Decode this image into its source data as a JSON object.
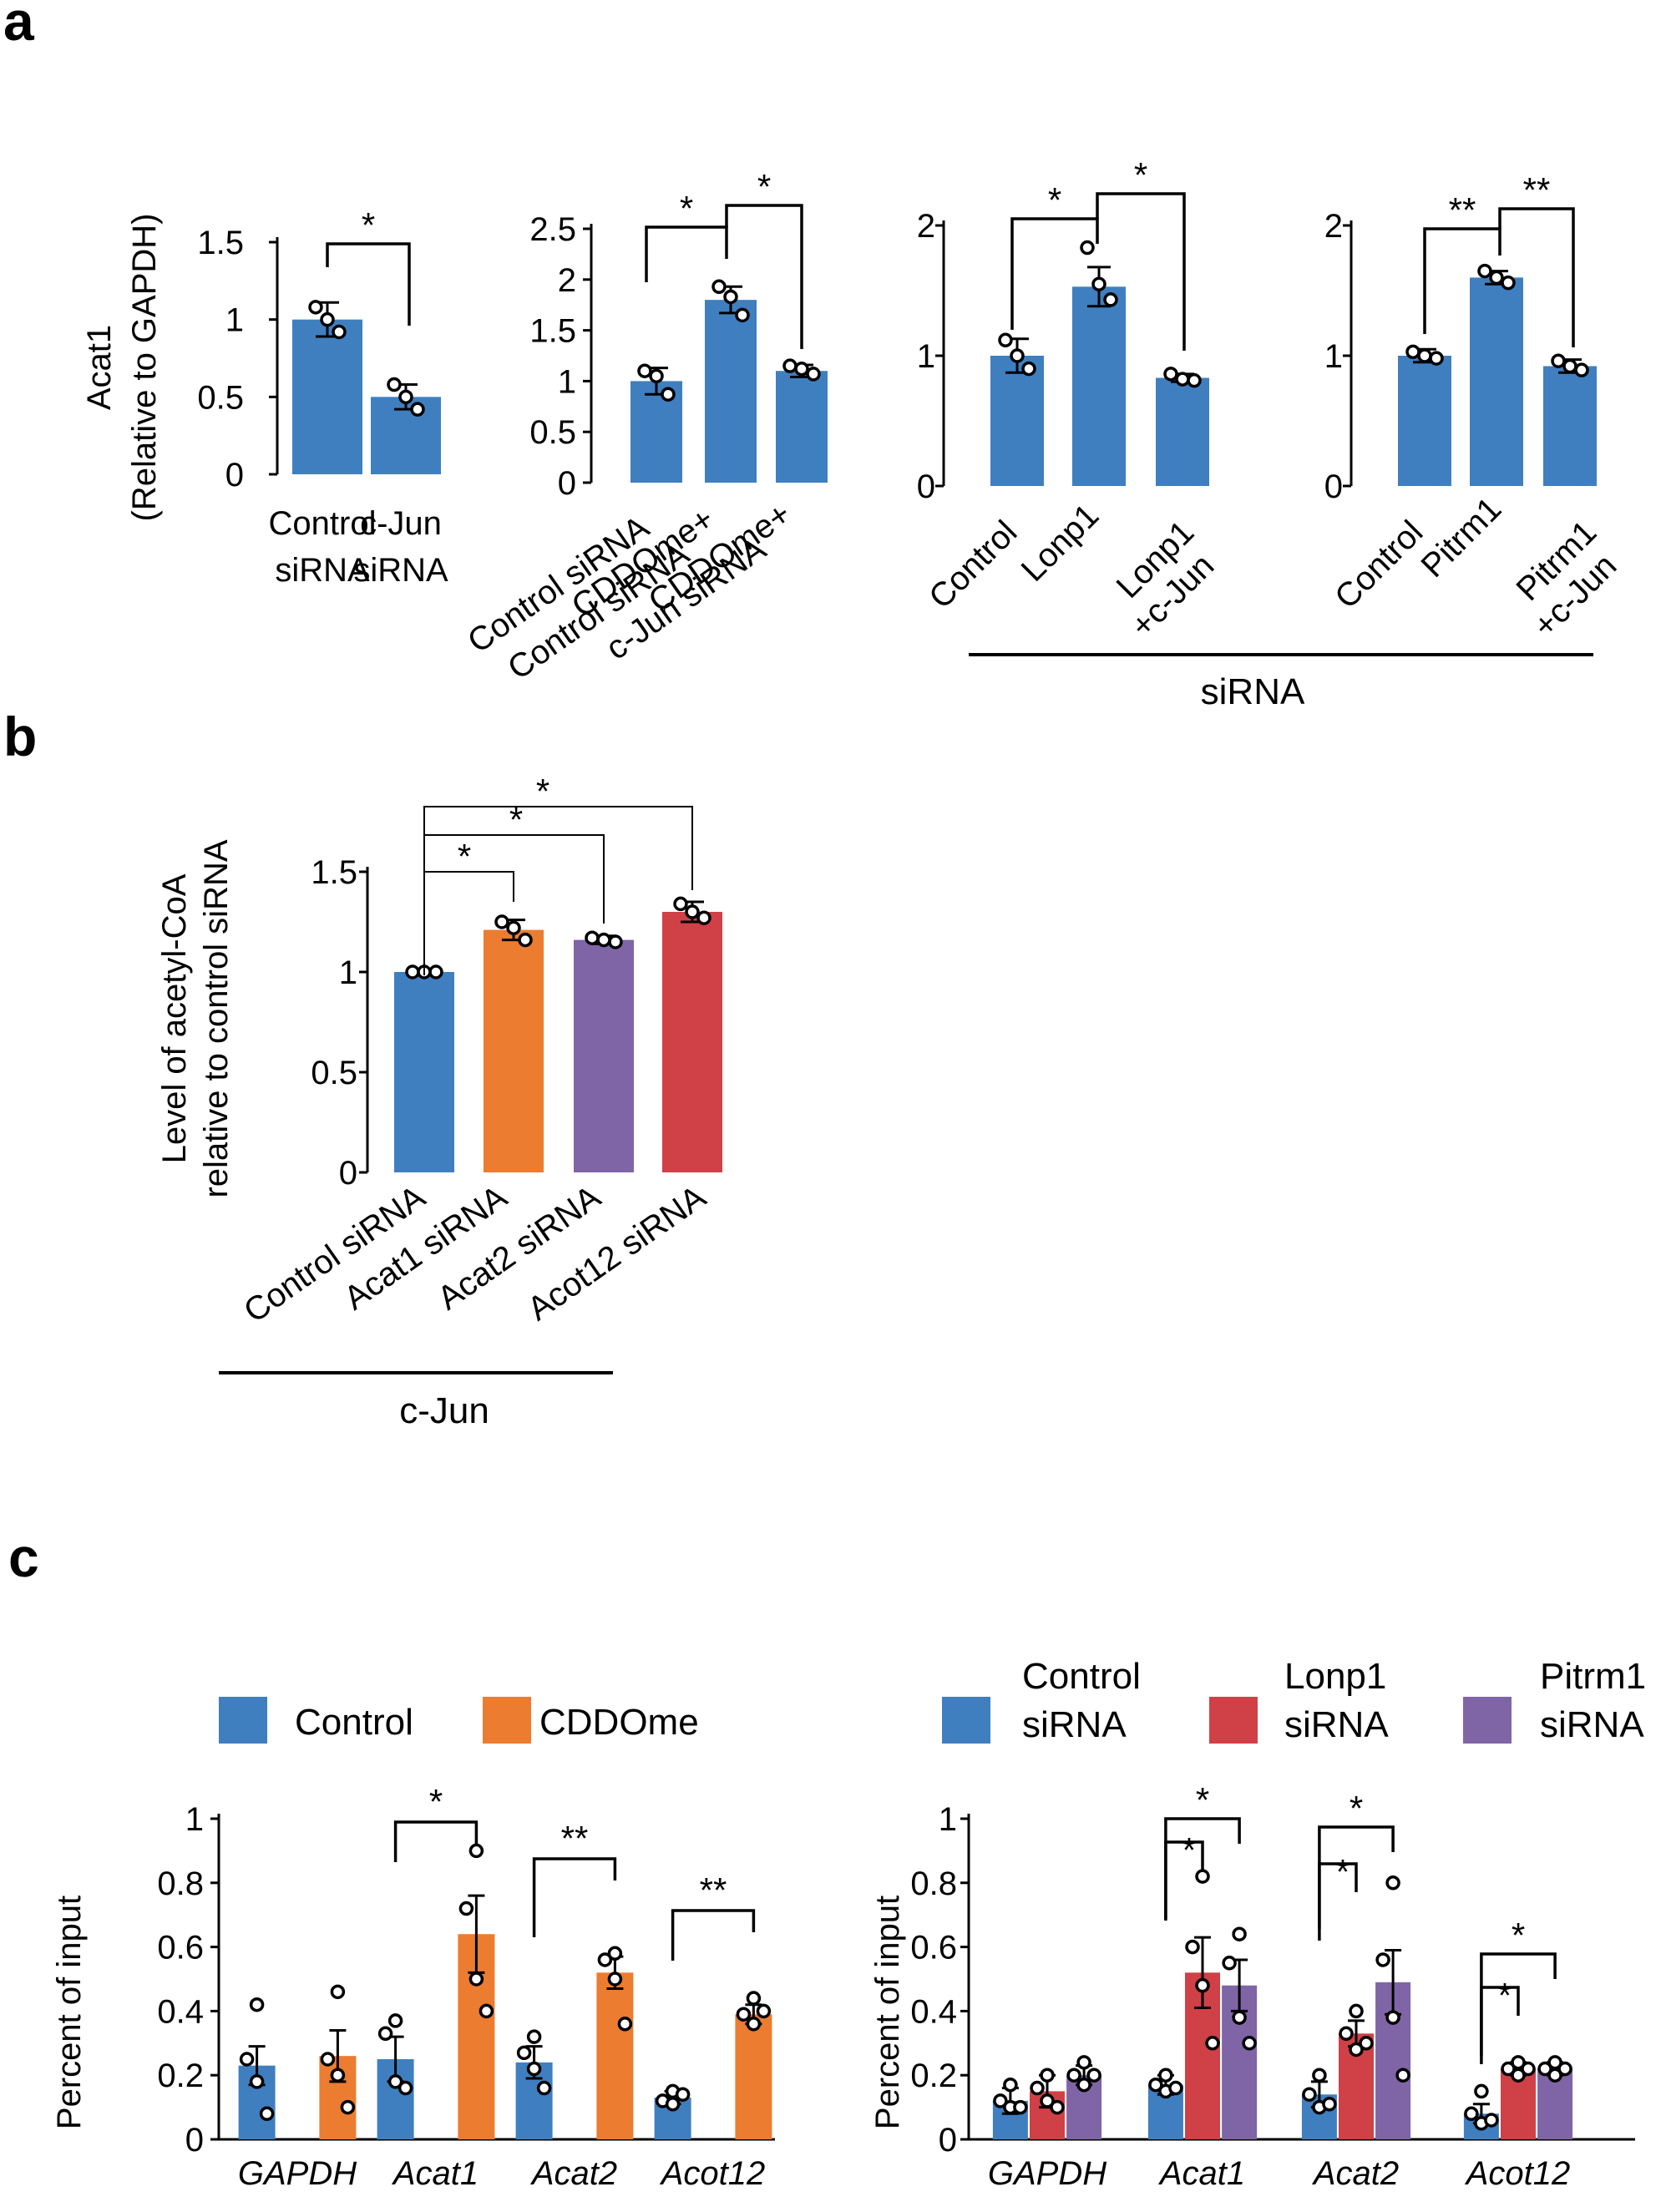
{
  "panel_labels": {
    "a": "a",
    "b": "b",
    "c": "c"
  },
  "colors": {
    "blue": "#3f7fc0",
    "orange": "#ec7c30",
    "purple": "#7f65a6",
    "red": "#cf4146"
  },
  "panel_a": {
    "ylabel_line1": "Acat1",
    "ylabel_line2": "(Relative to GAPDH)",
    "group_label_c": "siRNA",
    "group_label_d": "siRNA"
  },
  "panel_b": {
    "ylabel_line1": "Level of acetyl-CoA",
    "ylabel_line2": "relative to control siRNA",
    "group_label": "c-Jun"
  },
  "panel_c": {
    "ylabel": "Percent of input",
    "legend_left": [
      "Control",
      "CDDOme"
    ],
    "legend_right": [
      [
        "Control",
        "siRNA"
      ],
      [
        "Lonp1",
        "siRNA"
      ],
      [
        "Pitrm1",
        "siRNA"
      ]
    ]
  },
  "chart_data": [
    {
      "id": "a1",
      "type": "bar",
      "categories": [
        "Control siRNA",
        "c-Jun siRNA"
      ],
      "category_lines": [
        [
          "Control",
          "siRNA"
        ],
        [
          "c-Jun",
          "siRNA"
        ]
      ],
      "values": [
        1.0,
        0.5
      ],
      "errors": [
        0.11,
        0.08
      ],
      "points": [
        [
          1.08,
          0.92,
          1.0
        ],
        [
          0.58,
          0.42,
          0.5
        ]
      ],
      "yticks": [
        0,
        0.5,
        1,
        1.5
      ],
      "ytick_labels": [
        "0",
        "0.5",
        "1",
        "1.5"
      ],
      "ylim": [
        0,
        1.5
      ],
      "ylabel": "Acat1 (Relative to GAPDH)",
      "significance": [
        {
          "from": 0,
          "to": 1,
          "label": "*"
        }
      ]
    },
    {
      "id": "a2",
      "type": "bar",
      "categories": [
        "Control siRNA",
        "CDDOme+ Control siRNA",
        "CDDOme+ c-Jun siRNA"
      ],
      "category_lines": [
        [
          "Control siRNA"
        ],
        [
          "CDDOme+",
          "Control siRNA"
        ],
        [
          "CDDOme+",
          "c-Jun siRNA"
        ]
      ],
      "values": [
        1.0,
        1.8,
        1.1
      ],
      "errors": [
        0.13,
        0.13,
        0.06
      ],
      "points": [
        [
          1.1,
          0.87,
          1.05
        ],
        [
          1.93,
          1.65,
          1.83
        ],
        [
          1.15,
          1.07,
          1.12
        ]
      ],
      "yticks": [
        0,
        0.5,
        1,
        1.5,
        2,
        2.5
      ],
      "ytick_labels": [
        "0",
        "0.5",
        "1",
        "1.5",
        "2",
        "2.5"
      ],
      "ylim": [
        0,
        2.5
      ],
      "significance": [
        {
          "from": 0,
          "to": 1,
          "label": "*"
        },
        {
          "from": 1,
          "to": 2,
          "label": "*"
        }
      ]
    },
    {
      "id": "a3",
      "type": "bar",
      "categories": [
        "Control",
        "Lonp1",
        "Lonp1 +c-Jun"
      ],
      "category_lines": [
        [
          "Control"
        ],
        [
          "Lonp1"
        ],
        [
          "Lonp1",
          "+c-Jun"
        ]
      ],
      "values": [
        1.0,
        1.53,
        0.83
      ],
      "errors": [
        0.13,
        0.15,
        0.03
      ],
      "points": [
        [
          1.12,
          0.9,
          1.0
        ],
        [
          1.83,
          1.43,
          1.55
        ],
        [
          0.86,
          0.81,
          0.82
        ]
      ],
      "yticks": [
        0,
        1,
        2
      ],
      "ytick_labels": [
        "0",
        "1",
        "2"
      ],
      "ylim": [
        0,
        2
      ],
      "group_label": "siRNA",
      "significance": [
        {
          "from": 0,
          "to": 1,
          "label": "*"
        },
        {
          "from": 1,
          "to": 2,
          "label": "*"
        }
      ]
    },
    {
      "id": "a4",
      "type": "bar",
      "categories": [
        "Control",
        "Pitrm1",
        "Pitrm1 +c-Jun"
      ],
      "category_lines": [
        [
          "Control"
        ],
        [
          "Pitrm1"
        ],
        [
          "Pitrm1",
          "+c-Jun"
        ]
      ],
      "values": [
        1.0,
        1.6,
        0.92
      ],
      "errors": [
        0.05,
        0.05,
        0.05
      ],
      "points": [
        [
          1.03,
          0.98,
          1.0
        ],
        [
          1.65,
          1.56,
          1.6
        ],
        [
          0.96,
          0.89,
          0.92
        ]
      ],
      "yticks": [
        0,
        1,
        2
      ],
      "ytick_labels": [
        "0",
        "1",
        "2"
      ],
      "ylim": [
        0,
        2
      ],
      "group_label": "siRNA",
      "significance": [
        {
          "from": 0,
          "to": 1,
          "label": "**"
        },
        {
          "from": 1,
          "to": 2,
          "label": "**"
        }
      ]
    },
    {
      "id": "b",
      "type": "bar",
      "categories": [
        "Control siRNA",
        "Acat1 siRNA",
        "Acat2 siRNA",
        "Acot12 siRNA"
      ],
      "values": [
        1.0,
        1.21,
        1.16,
        1.3
      ],
      "errors": [
        0.0,
        0.05,
        0.02,
        0.05
      ],
      "points": [
        [
          1.0,
          1.0,
          1.0
        ],
        [
          1.25,
          1.16,
          1.22
        ],
        [
          1.17,
          1.15,
          1.16
        ],
        [
          1.34,
          1.27,
          1.3
        ]
      ],
      "colors": [
        "blue",
        "orange",
        "purple",
        "red"
      ],
      "yticks": [
        0,
        0.5,
        1,
        1.5
      ],
      "ytick_labels": [
        "0",
        "0.5",
        "1",
        "1.5"
      ],
      "ylim": [
        0,
        1.5
      ],
      "ylabel": "Level of acetyl-CoA relative to control siRNA",
      "group_label": "c-Jun",
      "significance": [
        {
          "from": 0,
          "to": 1,
          "label": "*"
        },
        {
          "from": 0,
          "to": 2,
          "label": "*"
        },
        {
          "from": 0,
          "to": 3,
          "label": "*"
        }
      ]
    },
    {
      "id": "c_left",
      "type": "bar",
      "categories": [
        "GAPDH",
        "Acat1",
        "Acat2",
        "Acot12"
      ],
      "series": [
        {
          "name": "Control",
          "color": "blue",
          "values": [
            0.23,
            0.25,
            0.24,
            0.13
          ],
          "errors": [
            0.06,
            0.07,
            0.05,
            0.02
          ],
          "points": [
            [
              0.42,
              0.25,
              0.18,
              0.08
            ],
            [
              0.37,
              0.33,
              0.18,
              0.16
            ],
            [
              0.32,
              0.27,
              0.22,
              0.16
            ],
            [
              0.15,
              0.12,
              0.11,
              0.14
            ]
          ]
        },
        {
          "name": "CDDOme",
          "color": "orange",
          "values": [
            0.26,
            0.64,
            0.52,
            0.39
          ],
          "errors": [
            0.08,
            0.12,
            0.05,
            0.03
          ],
          "points": [
            [
              0.46,
              0.25,
              0.2,
              0.1
            ],
            [
              0.9,
              0.72,
              0.5,
              0.4
            ],
            [
              0.58,
              0.56,
              0.5,
              0.36
            ],
            [
              0.44,
              0.39,
              0.36,
              0.4
            ]
          ]
        }
      ],
      "yticks": [
        0,
        0.2,
        0.4,
        0.6,
        0.8,
        1
      ],
      "ytick_labels": [
        "0",
        "0.2",
        "0.4",
        "0.6",
        "0.8",
        "1"
      ],
      "ylim": [
        0,
        1
      ],
      "ylabel": "Percent of input",
      "significance": [
        {
          "category": 1,
          "label": "*"
        },
        {
          "category": 2,
          "label": "**"
        },
        {
          "category": 3,
          "label": "**"
        }
      ]
    },
    {
      "id": "c_right",
      "type": "bar",
      "categories": [
        "GAPDH",
        "Acat1",
        "Acat2",
        "Acot12"
      ],
      "series": [
        {
          "name": "Control siRNA",
          "color": "blue",
          "values": [
            0.12,
            0.17,
            0.14,
            0.08
          ],
          "errors": [
            0.04,
            0.03,
            0.04,
            0.03
          ],
          "points": [
            [
              0.17,
              0.12,
              0.1,
              0.1
            ],
            [
              0.2,
              0.17,
              0.15,
              0.16
            ],
            [
              0.2,
              0.14,
              0.1,
              0.11
            ],
            [
              0.15,
              0.08,
              0.05,
              0.06
            ]
          ]
        },
        {
          "name": "Lonp1 siRNA",
          "color": "red",
          "values": [
            0.15,
            0.52,
            0.33,
            0.22
          ],
          "errors": [
            0.05,
            0.11,
            0.04,
            0.02
          ],
          "points": [
            [
              0.2,
              0.16,
              0.12,
              0.1
            ],
            [
              0.82,
              0.6,
              0.48,
              0.3
            ],
            [
              0.4,
              0.33,
              0.28,
              0.3
            ],
            [
              0.24,
              0.22,
              0.2,
              0.22
            ]
          ]
        },
        {
          "name": "Pitrm1 siRNA",
          "color": "purple",
          "values": [
            0.2,
            0.48,
            0.49,
            0.22
          ],
          "errors": [
            0.03,
            0.08,
            0.1,
            0.02
          ],
          "points": [
            [
              0.24,
              0.2,
              0.17,
              0.2
            ],
            [
              0.64,
              0.55,
              0.38,
              0.3
            ],
            [
              0.8,
              0.56,
              0.38,
              0.2
            ],
            [
              0.24,
              0.22,
              0.2,
              0.22
            ]
          ]
        }
      ],
      "yticks": [
        0,
        0.2,
        0.4,
        0.6,
        0.8,
        1
      ],
      "ytick_labels": [
        "0",
        "0.2",
        "0.4",
        "0.6",
        "0.8",
        "1"
      ],
      "ylim": [
        0,
        1
      ],
      "ylabel": "Percent of input",
      "significance": [
        {
          "category": 1,
          "from_series": 0,
          "to_series": 1,
          "label": "*"
        },
        {
          "category": 1,
          "from_series": 0,
          "to_series": 2,
          "label": "*"
        },
        {
          "category": 2,
          "from_series": 0,
          "to_series": 1,
          "label": "*"
        },
        {
          "category": 2,
          "from_series": 0,
          "to_series": 2,
          "label": "*"
        },
        {
          "category": 3,
          "from_series": 0,
          "to_series": 1,
          "label": "*"
        },
        {
          "category": 3,
          "from_series": 0,
          "to_series": 2,
          "label": "*"
        }
      ]
    }
  ]
}
